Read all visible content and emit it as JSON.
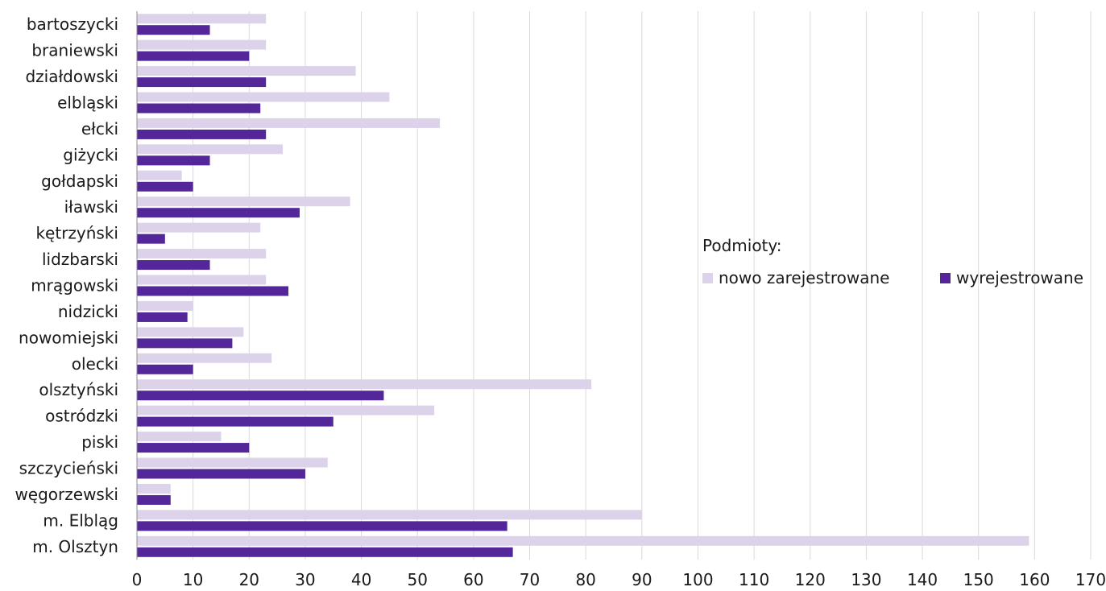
{
  "chart_data": {
    "type": "bar",
    "orientation": "horizontal",
    "legend_title": "Podmioty:",
    "categories": [
      "bartoszycki",
      "braniewski",
      "działdowski",
      "elbląski",
      "ełcki",
      "giżycki",
      "gołdapski",
      "iławski",
      "kętrzyński",
      "lidzbarski",
      "mrągowski",
      "nidzicki",
      "nowomiejski",
      "olecki",
      "olsztyński",
      "ostródzki",
      "piski",
      "szczycieński",
      "węgorzewski",
      "m. Elbląg",
      "m. Olsztyn"
    ],
    "series": [
      {
        "name": "nowo zarejestrowane",
        "color": "#dcd3eb",
        "values": [
          23,
          23,
          39,
          45,
          54,
          26,
          8,
          38,
          22,
          23,
          23,
          10,
          19,
          24,
          81,
          53,
          15,
          34,
          6,
          90,
          159
        ]
      },
      {
        "name": "wyrejestrowane",
        "color": "#53269a",
        "values": [
          13,
          20,
          23,
          22,
          23,
          13,
          10,
          29,
          5,
          13,
          27,
          9,
          17,
          10,
          44,
          35,
          20,
          30,
          6,
          66,
          67
        ]
      }
    ],
    "xlim": [
      0,
      170
    ],
    "xticks": [
      "0",
      "10",
      "20",
      "30",
      "40",
      "50",
      "60",
      "70",
      "80",
      "90",
      "100",
      "110",
      "120",
      "130",
      "140",
      "150",
      "160",
      "170"
    ],
    "grid": true,
    "legend_position": "right"
  }
}
